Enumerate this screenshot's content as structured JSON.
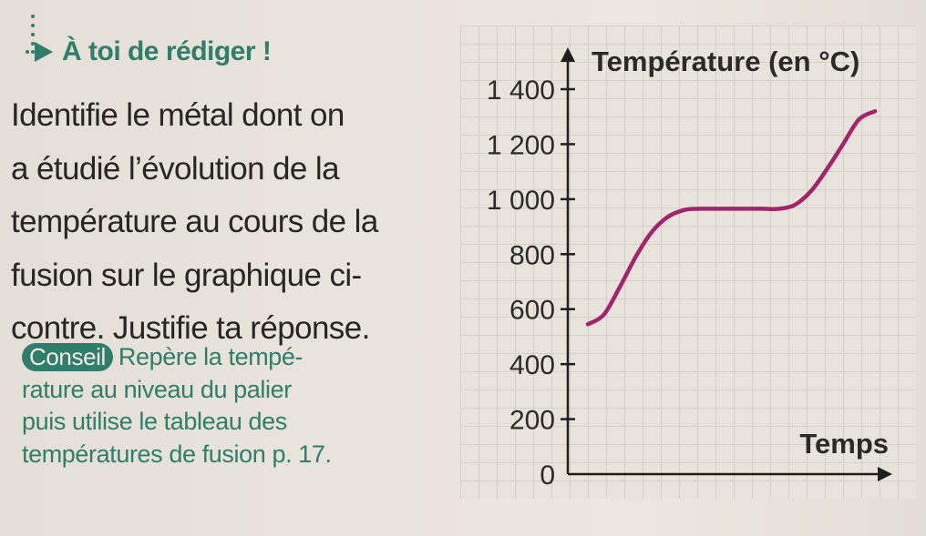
{
  "exercise": {
    "heading": "À toi de rédiger !",
    "icon": "arrow-right-icon",
    "accent_color": "#2f7d6a",
    "instruction_lines": [
      "Identifie le métal dont on",
      "a étudié l’évolution de la",
      "température au cours de la",
      "fusion sur le graphique ci-",
      "contre. Justifie ta réponse."
    ],
    "tip_badge": "Conseil",
    "tip_lines": [
      "Repère la tempé-",
      "rature au niveau du palier",
      "puis utilise le tableau des",
      "températures de fusion p. 17."
    ]
  },
  "chart_data": {
    "type": "line",
    "ylabel": "Température (en °C)",
    "xlabel": "Temps",
    "ylim": [
      0,
      1400
    ],
    "yticks": [
      0,
      200,
      400,
      600,
      800,
      1000,
      1200,
      1400
    ],
    "ytick_labels": [
      "0",
      "200",
      "400",
      "600",
      "800",
      "1 000",
      "1 200",
      "1 400"
    ],
    "line_color": "#a3246a",
    "grid": true,
    "series": [
      {
        "x": [
          0,
          0.5,
          1,
          1.5,
          2,
          2.5,
          3,
          3.5,
          4,
          4.5,
          5,
          5.5,
          6,
          6.5,
          7,
          7.5,
          8,
          8.5,
          9
        ],
        "values": [
          545,
          580,
          680,
          790,
          880,
          935,
          960,
          965,
          965,
          965,
          965,
          965,
          965,
          980,
          1030,
          1110,
          1200,
          1290,
          1320
        ]
      }
    ],
    "xlim": [
      0,
      11.5
    ]
  }
}
